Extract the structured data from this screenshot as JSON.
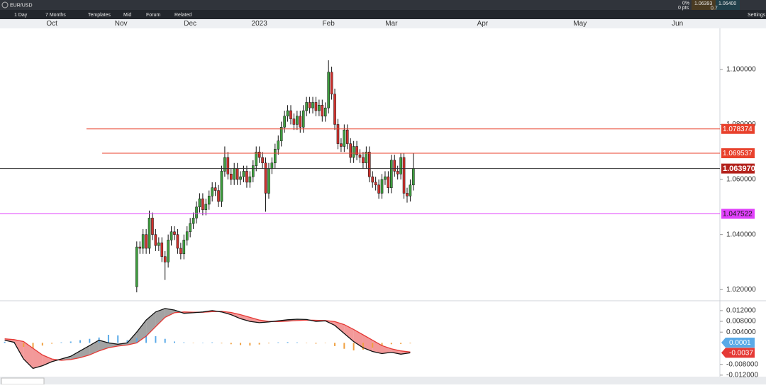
{
  "toolbar": {
    "symbol": "EUR/USD",
    "interval": "1 Day",
    "range": "7 Months",
    "templates": "Templates",
    "price_type": "Mid",
    "forum": "Forum",
    "related": "Related",
    "change_pct": "0%",
    "change_pts": "0 pts",
    "bid": "1.06393",
    "ask": "1.06400",
    "spread": "0.7",
    "settings": "Settings"
  },
  "chart_data": {
    "type": "candlestick",
    "x": [
      27,
      28,
      29,
      30,
      31,
      32,
      33,
      34,
      35,
      36,
      37,
      38,
      39,
      40,
      41,
      42,
      43,
      44,
      45,
      46,
      47,
      48,
      49,
      50,
      51,
      52,
      53,
      54,
      55,
      56,
      57,
      58,
      59,
      60,
      61,
      62,
      63,
      64,
      65,
      66,
      67,
      68,
      69,
      70,
      71,
      72,
      73,
      74,
      75,
      76,
      77,
      78,
      79,
      80,
      81,
      82,
      83,
      84,
      85,
      86,
      87,
      88,
      89,
      90,
      91,
      92,
      93,
      94,
      95,
      96,
      97,
      98,
      99,
      100,
      101,
      102,
      103,
      104,
      105,
      106,
      107,
      108,
      109,
      110,
      111,
      112,
      113,
      114,
      115
    ],
    "open": [
      1.021,
      1.0355,
      1.035,
      1.04,
      1.035,
      1.046,
      1.04,
      1.036,
      1.037,
      1.032,
      1.03,
      1.038,
      1.041,
      1.04,
      1.035,
      1.033,
      1.038,
      1.041,
      1.044,
      1.046,
      1.05,
      1.053,
      1.049,
      1.051,
      1.054,
      1.057,
      1.056,
      1.052,
      1.063,
      1.068,
      1.062,
      1.06,
      1.064,
      1.06,
      1.061,
      1.063,
      1.059,
      1.061,
      1.065,
      1.07,
      1.068,
      1.066,
      1.055,
      1.064,
      1.066,
      1.071,
      1.074,
      1.079,
      1.083,
      1.085,
      1.082,
      1.08,
      1.083,
      1.079,
      1.085,
      1.088,
      1.086,
      1.088,
      1.085,
      1.087,
      1.083,
      1.086,
      1.099,
      1.091,
      1.08,
      1.073,
      1.072,
      1.078,
      1.073,
      1.068,
      1.072,
      1.069,
      1.068,
      1.066,
      1.07,
      1.061,
      1.059,
      1.058,
      1.055,
      1.06,
      1.061,
      1.057,
      1.067,
      1.063,
      1.062,
      1.068,
      1.055,
      1.054,
      1.058
    ],
    "high": [
      1.0375,
      1.0375,
      1.042,
      1.042,
      1.0487,
      1.048,
      1.042,
      1.039,
      1.039,
      1.034,
      1.04,
      1.043,
      1.043,
      1.042,
      1.037,
      1.04,
      1.043,
      1.046,
      1.048,
      1.052,
      1.055,
      1.055,
      1.053,
      1.056,
      1.059,
      1.059,
      1.058,
      1.065,
      1.072,
      1.07,
      1.064,
      1.066,
      1.066,
      1.063,
      1.065,
      1.065,
      1.063,
      1.067,
      1.072,
      1.072,
      1.07,
      1.068,
      1.066,
      1.068,
      1.073,
      1.076,
      1.081,
      1.085,
      1.087,
      1.087,
      1.084,
      1.085,
      1.085,
      1.087,
      1.09,
      1.09,
      1.09,
      1.09,
      1.089,
      1.089,
      1.088,
      1.1033,
      1.101,
      1.093,
      1.082,
      1.075,
      1.08,
      1.08,
      1.075,
      1.074,
      1.074,
      1.071,
      1.07,
      1.072,
      1.072,
      1.063,
      1.061,
      1.06,
      1.062,
      1.063,
      1.063,
      1.069,
      1.069,
      1.065,
      1.0695,
      1.0695,
      1.057,
      1.06,
      1.0695
    ],
    "low": [
      1.019,
      1.033,
      1.033,
      1.033,
      1.033,
      1.038,
      1.034,
      1.034,
      1.03,
      1.0235,
      1.028,
      1.036,
      1.038,
      1.033,
      1.031,
      1.031,
      1.036,
      1.039,
      1.042,
      1.044,
      1.048,
      1.047,
      1.047,
      1.049,
      1.052,
      1.054,
      1.05,
      1.05,
      1.061,
      1.06,
      1.058,
      1.058,
      1.058,
      1.058,
      1.059,
      1.057,
      1.057,
      1.059,
      1.063,
      1.066,
      1.064,
      1.0483,
      1.053,
      1.062,
      1.064,
      1.069,
      1.072,
      1.077,
      1.081,
      1.08,
      1.078,
      1.078,
      1.077,
      1.077,
      1.083,
      1.084,
      1.084,
      1.083,
      1.083,
      1.081,
      1.081,
      1.084,
      1.089,
      1.078,
      1.071,
      1.07,
      1.07,
      1.071,
      1.066,
      1.066,
      1.067,
      1.066,
      1.064,
      1.064,
      1.059,
      1.057,
      1.056,
      1.053,
      1.053,
      1.058,
      1.055,
      1.055,
      1.061,
      1.06,
      1.06,
      1.053,
      1.0516,
      1.052,
      1.056
    ],
    "close": [
      1.0355,
      1.035,
      1.04,
      1.035,
      1.046,
      1.04,
      1.036,
      1.037,
      1.032,
      1.03,
      1.038,
      1.041,
      1.04,
      1.035,
      1.033,
      1.038,
      1.041,
      1.044,
      1.046,
      1.05,
      1.053,
      1.049,
      1.051,
      1.054,
      1.057,
      1.056,
      1.052,
      1.063,
      1.068,
      1.062,
      1.06,
      1.064,
      1.06,
      1.061,
      1.063,
      1.059,
      1.061,
      1.065,
      1.07,
      1.068,
      1.066,
      1.055,
      1.064,
      1.066,
      1.071,
      1.074,
      1.079,
      1.083,
      1.085,
      1.082,
      1.08,
      1.083,
      1.079,
      1.085,
      1.088,
      1.086,
      1.088,
      1.085,
      1.087,
      1.083,
      1.086,
      1.099,
      1.091,
      1.08,
      1.073,
      1.072,
      1.078,
      1.073,
      1.068,
      1.072,
      1.069,
      1.068,
      1.066,
      1.07,
      1.061,
      1.059,
      1.058,
      1.055,
      1.06,
      1.061,
      1.057,
      1.067,
      1.063,
      1.062,
      1.068,
      1.055,
      1.054,
      1.058,
      1.064
    ],
    "up_color": "#3f9f3f",
    "down_color": "#d0312d",
    "xlim": [
      -16.5,
      212.5
    ],
    "xticks": [
      {
        "value": 0,
        "label": "Oct"
      },
      {
        "value": 22,
        "label": "Nov"
      },
      {
        "value": 44,
        "label": "Dec"
      },
      {
        "value": 66,
        "label": "2023"
      },
      {
        "value": 88,
        "label": "Feb"
      },
      {
        "value": 108,
        "label": "Mar"
      },
      {
        "value": 137,
        "label": "Apr"
      },
      {
        "value": 168,
        "label": "May"
      },
      {
        "value": 199,
        "label": "Jun"
      }
    ],
    "ylim": [
      1.0162,
      1.1149
    ],
    "yticks": [
      {
        "value": 1.02,
        "label": "1.020000"
      },
      {
        "value": 1.04,
        "label": "1.040000"
      },
      {
        "value": 1.06,
        "label": "1.060000"
      },
      {
        "value": 1.08,
        "label": "1.080000"
      },
      {
        "value": 1.1,
        "label": "1.100000"
      }
    ],
    "levels": [
      {
        "value": 1.078374,
        "label": "1.078374",
        "color": "#e8412c",
        "text_color": "#ffffff",
        "from_x": 11
      },
      {
        "value": 1.069537,
        "label": "1.069537",
        "color": "#e8412c",
        "text_color": "#ffffff",
        "from_x": 16
      },
      {
        "value": 1.06397,
        "label": "1.063970",
        "color": "#b3221c",
        "line_color": "#333333",
        "text_color": "#ffffff"
      },
      {
        "value": 1.047522,
        "label": "1.047522",
        "color": "#e040fb",
        "text_color": "#1a1a1a"
      }
    ],
    "macd": {
      "x": [
        -15,
        -12,
        -9,
        -6,
        -3,
        0,
        3,
        6,
        9,
        12,
        15,
        18,
        21,
        24,
        27,
        30,
        33,
        36,
        39,
        42,
        45,
        48,
        51,
        54,
        57,
        60,
        63,
        66,
        69,
        72,
        75,
        78,
        81,
        84,
        87,
        90,
        93,
        96,
        99,
        102,
        105,
        108,
        111,
        114
      ],
      "macd": [
        0.001,
        0.0002,
        -0.006,
        -0.0095,
        -0.0085,
        -0.007,
        -0.006,
        -0.005,
        -0.003,
        -0.001,
        0.001,
        0.0,
        -0.0005,
        0.0,
        0.004,
        0.0085,
        0.0115,
        0.0128,
        0.0122,
        0.011,
        0.0112,
        0.0115,
        0.012,
        0.0115,
        0.0105,
        0.009,
        0.008,
        0.0075,
        0.0078,
        0.0082,
        0.0086,
        0.0088,
        0.0087,
        0.008,
        0.0082,
        0.0065,
        0.0035,
        0.0005,
        -0.0018,
        -0.0032,
        -0.004,
        -0.0035,
        -0.0042,
        -0.0037
      ],
      "signal": [
        0.0015,
        0.0012,
        0.0005,
        -0.002,
        -0.0045,
        -0.006,
        -0.0065,
        -0.0062,
        -0.0055,
        -0.0045,
        -0.003,
        -0.0018,
        -0.0012,
        -0.0008,
        0.0,
        0.0025,
        0.006,
        0.0095,
        0.0112,
        0.0115,
        0.0114,
        0.0114,
        0.0116,
        0.0117,
        0.0113,
        0.0105,
        0.0095,
        0.0085,
        0.008,
        0.0079,
        0.0081,
        0.0083,
        0.0085,
        0.0084,
        0.0083,
        0.0079,
        0.0068,
        0.005,
        0.003,
        0.001,
        -0.001,
        -0.0022,
        -0.003,
        -0.0034
      ],
      "histogram": [
        0.0004,
        0.0003,
        -0.0015,
        -0.002,
        -0.001,
        -0.0003,
        0.0002,
        0.0005,
        0.001,
        0.0015,
        0.002,
        0.003,
        0.0028,
        0.001,
        0.0018,
        0.003,
        0.0025,
        0.0015,
        0.0005,
        0.0002,
        -0.0001,
        0.0001,
        0.0002,
        -0.0002,
        -0.0005,
        -0.0008,
        -0.001,
        -0.0006,
        -0.0002,
        0.0002,
        0.0003,
        0.0002,
        -0.0001,
        -0.0003,
        -0.0001,
        -0.0012,
        -0.0022,
        -0.0028,
        -0.0025,
        -0.0018,
        -0.0012,
        -0.0005,
        -0.0004,
        -0.0002
      ],
      "macd_color": "#111111",
      "signal_color": "#e53935",
      "hist_up_color": "#5aaae8",
      "hist_down_color": "#f0a040",
      "ylim": [
        -0.0123,
        0.0154
      ],
      "yticks": [
        {
          "value": 0.012,
          "label": "0.012000"
        },
        {
          "value": 0.008,
          "label": "0.008000"
        },
        {
          "value": 0.004,
          "label": "0.004000"
        },
        {
          "value": -0.008,
          "label": "-0.008000"
        },
        {
          "value": -0.012,
          "label": "-0.012000"
        }
      ],
      "badges": [
        {
          "value": 0.0001,
          "label": "0.0001",
          "color": "#5aaae8"
        },
        {
          "value": -0.0037,
          "label": "-0.0037",
          "color": "#e53935"
        }
      ]
    }
  }
}
